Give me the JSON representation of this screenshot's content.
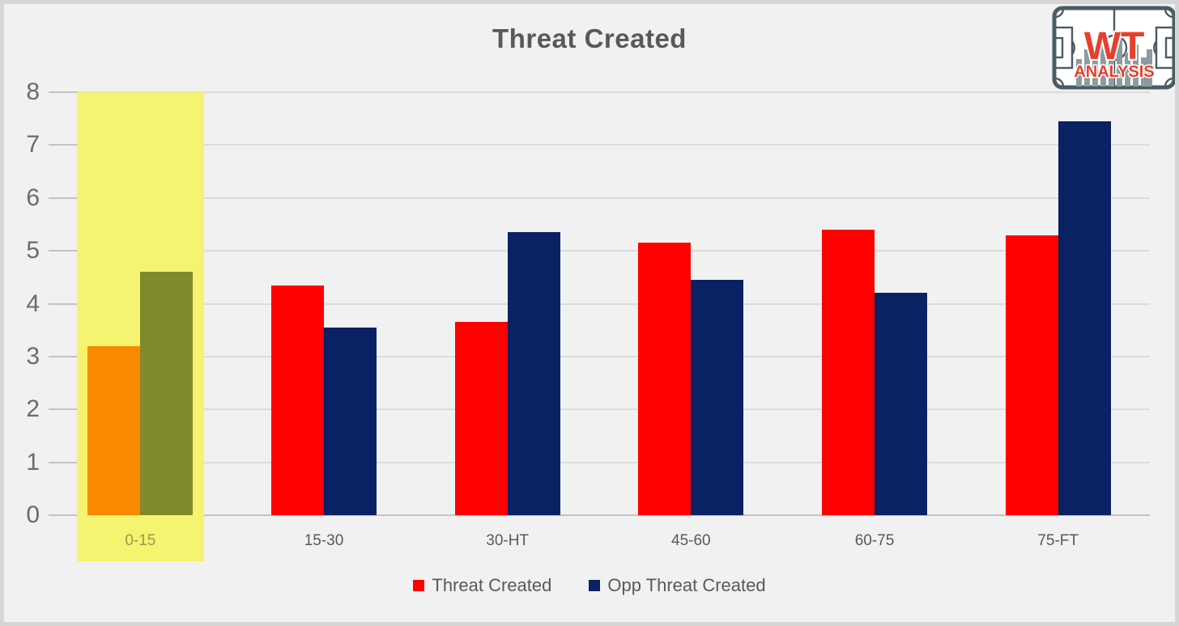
{
  "logo": {
    "line1": "WT",
    "line2": "ANALYSIS"
  },
  "chart_data": {
    "type": "bar",
    "title": "Threat Created",
    "categories": [
      "0-15",
      "15-30",
      "30-HT",
      "45-60",
      "60-75",
      "75-FT"
    ],
    "series": [
      {
        "name": "Threat Created",
        "color": "#fe0000",
        "values": [
          3.2,
          4.35,
          3.65,
          5.15,
          5.4,
          5.3
        ]
      },
      {
        "name": "Opp Threat Created",
        "color": "#0a2263",
        "values": [
          4.6,
          3.55,
          5.35,
          4.45,
          4.2,
          7.45
        ]
      }
    ],
    "xlabel": "",
    "ylabel": "",
    "ylim": [
      0,
      8
    ],
    "yticks": [
      0,
      1,
      2,
      3,
      4,
      5,
      6,
      7,
      8
    ],
    "grid": true,
    "legend_position": "bottom",
    "highlight": {
      "category": "0-15",
      "band_color": "#f5f370",
      "series_colors": [
        "#f98a00",
        "#7e8a2b"
      ],
      "label_color": "#99994f"
    },
    "colors": {
      "background": "#f1f1f1",
      "frame_border": "#d6d6d6",
      "gridline": "#dcdcdc",
      "axis_line": "#c3c3c3",
      "title_text": "#595959",
      "tick_text": "#6b6b6b",
      "legend_text": "#595959"
    }
  }
}
